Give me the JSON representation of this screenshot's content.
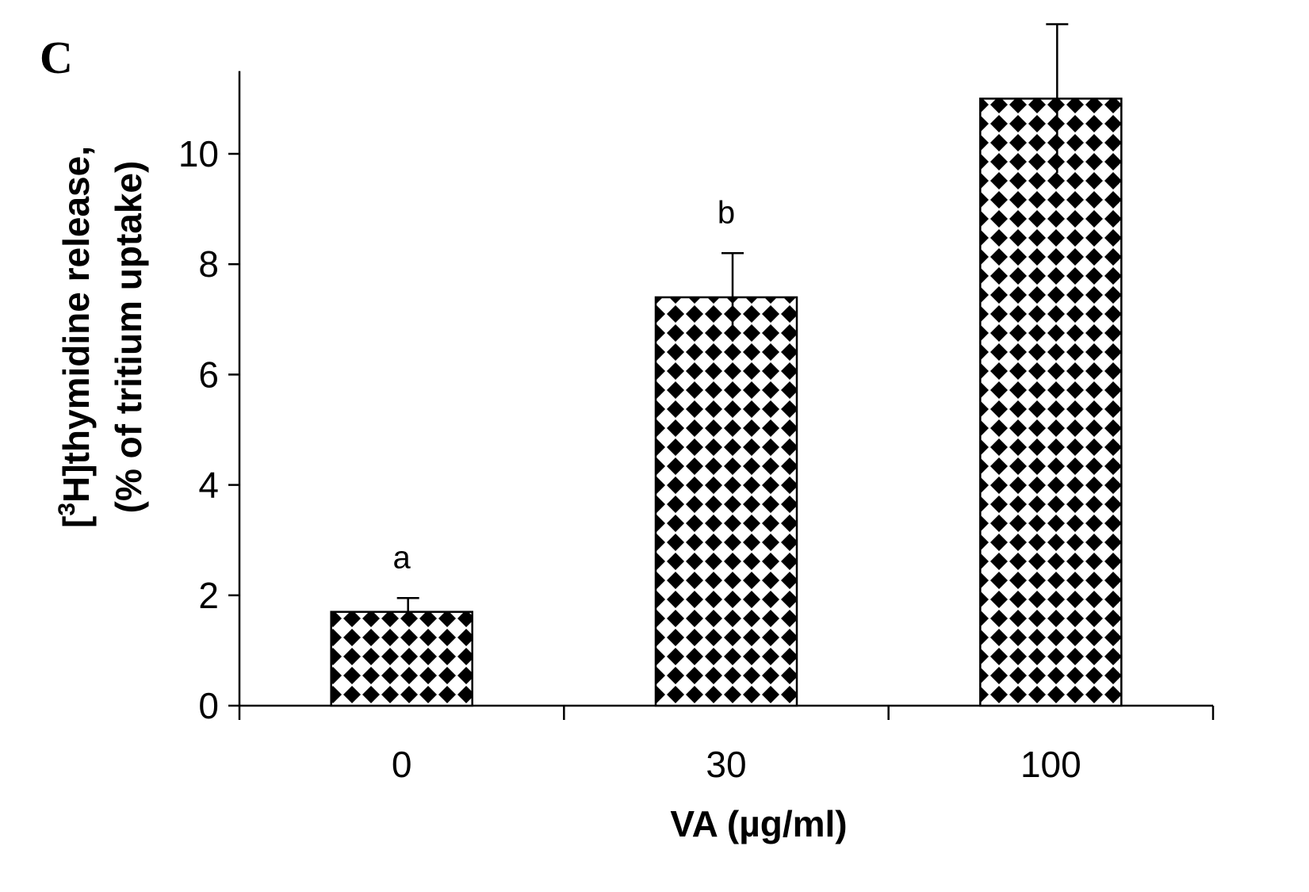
{
  "panel_label": "C",
  "chart_data": {
    "type": "bar",
    "categories": [
      "0",
      "30",
      "100"
    ],
    "values": [
      1.7,
      7.4,
      11.0
    ],
    "errors": [
      0.25,
      0.8,
      1.35
    ],
    "significance": [
      "a",
      "b",
      ""
    ],
    "xlabel": "VA (µg/ml)",
    "ylabel_line1_prefix": "[",
    "ylabel_line1_sup": "3",
    "ylabel_line1_rest": "H]thymidine release,",
    "ylabel_line2": "(% of tritium uptake)",
    "yticks": [
      0,
      2,
      4,
      6,
      8,
      10
    ],
    "ylim": [
      0,
      11.5
    ],
    "bar_pattern": "black diamonds on white",
    "bar_color": "#000000",
    "background": "#ffffff",
    "grid": false
  }
}
